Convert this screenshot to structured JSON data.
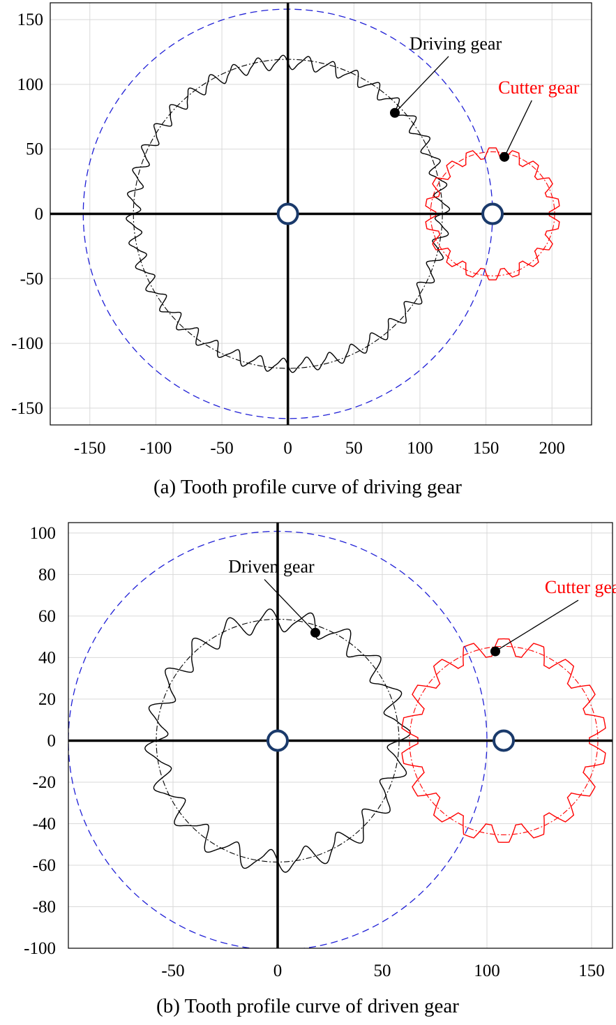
{
  "colors": {
    "driving_gear": "#000000",
    "cutter_gear": "#ff0000",
    "dashed_circle": "#1f1fd6",
    "center_marker": "#1a3a6b",
    "grid": "#d9d9d9"
  },
  "chart_data": [
    {
      "type": "scatter",
      "panel": "a",
      "caption": "(a) Tooth profile curve of driving gear",
      "xlim": [
        -180,
        230
      ],
      "ylim": [
        -163,
        163
      ],
      "xticks": [
        -150,
        -100,
        -50,
        0,
        50,
        100,
        150,
        200
      ],
      "yticks": [
        -150,
        -100,
        -50,
        0,
        50,
        100,
        150
      ],
      "grid": true,
      "series": [
        {
          "name": "Driving gear",
          "kind": "gear",
          "center": [
            0,
            0
          ],
          "pitch_radius": 117,
          "teeth": 40,
          "amplitude": 5,
          "color": "#000000"
        },
        {
          "name": "Cutter gear",
          "kind": "gear",
          "center": [
            155,
            0
          ],
          "pitch_radius": 47,
          "teeth": 18,
          "amplitude": 4,
          "color": "#ff0000"
        },
        {
          "kind": "circle",
          "center": [
            0,
            0
          ],
          "radius": 155,
          "color": "#1f1fd6"
        },
        {
          "kind": "center_markers",
          "points": [
            [
              0,
              0
            ],
            [
              155,
              0
            ]
          ]
        }
      ],
      "annotations": [
        {
          "text": "Driving gear",
          "point": [
            81,
            78
          ],
          "text_pos": [
            127,
            127
          ],
          "color": "#000000"
        },
        {
          "text": "Cutter gear",
          "point": [
            164,
            44
          ],
          "text_pos": [
            190,
            93
          ],
          "color": "#ff0000"
        }
      ]
    },
    {
      "type": "scatter",
      "panel": "b",
      "caption": "(b) Tooth profile curve of driven gear",
      "xlim": [
        -100,
        160
      ],
      "ylim": [
        -100,
        105
      ],
      "xticks": [
        -50,
        0,
        50,
        100,
        150
      ],
      "yticks": [
        -100,
        -80,
        -60,
        -40,
        -20,
        0,
        20,
        40,
        60,
        80,
        100
      ],
      "grid": true,
      "series": [
        {
          "name": "Driven gear",
          "kind": "gear",
          "center": [
            0,
            0
          ],
          "pitch_radius": 58,
          "teeth": 20,
          "amplitude": 5,
          "color": "#000000"
        },
        {
          "name": "Cutter gear",
          "kind": "gear",
          "center": [
            108,
            0
          ],
          "pitch_radius": 45,
          "teeth": 18,
          "amplitude": 4,
          "color": "#ff0000"
        },
        {
          "kind": "circle",
          "center": [
            0,
            0
          ],
          "radius": 100,
          "color": "#1f1fd6"
        },
        {
          "kind": "center_markers",
          "points": [
            [
              0,
              0
            ],
            [
              108,
              0
            ]
          ]
        }
      ],
      "annotations": [
        {
          "text": "Driven gear",
          "point": [
            18,
            52
          ],
          "text_pos": [
            -3,
            81
          ],
          "color": "#000000"
        },
        {
          "text": "Cutter gear",
          "point": [
            104,
            43
          ],
          "text_pos": [
            147,
            71
          ],
          "color": "#ff0000"
        }
      ]
    }
  ]
}
